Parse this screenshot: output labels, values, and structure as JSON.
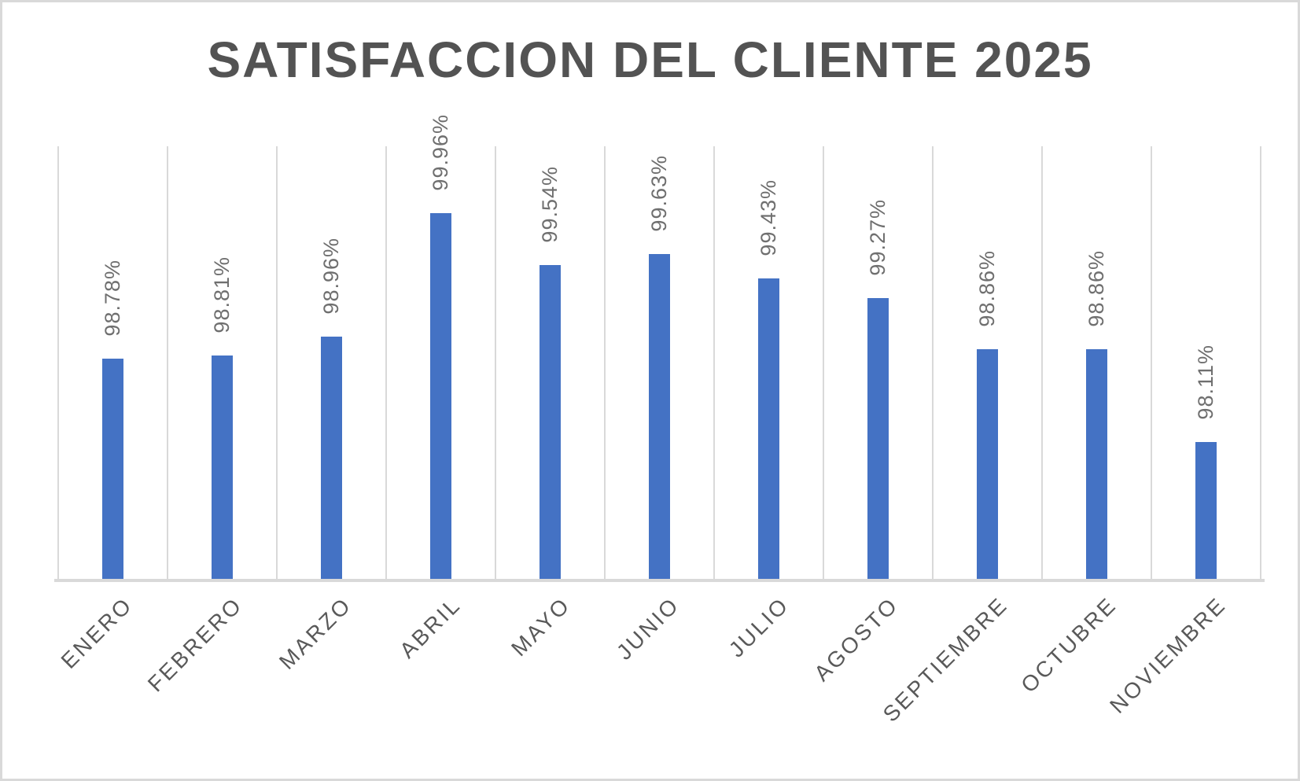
{
  "chart": {
    "title": "SATISFACCION DEL CLIENTE 2025"
  },
  "chart_data": {
    "type": "bar",
    "title": "SATISFACCION DEL CLIENTE 2025",
    "categories": [
      "ENERO",
      "FEBRERO",
      "MARZO",
      "ABRIL",
      "MAYO",
      "JUNIO",
      "JULIO",
      "AGOSTO",
      "SEPTIEMBRE",
      "OCTUBRE",
      "NOVIEMBRE"
    ],
    "values": [
      98.78,
      98.81,
      98.96,
      99.96,
      99.54,
      99.63,
      99.43,
      99.27,
      98.86,
      98.86,
      98.11
    ],
    "data_labels": [
      "98.78%",
      "98.81%",
      "98.96%",
      "99.96%",
      "99.54%",
      "99.63%",
      "99.43%",
      "99.27%",
      "98.86%",
      "98.86%",
      "98.11%"
    ],
    "xlabel": "",
    "ylabel": "",
    "ylim": [
      97.0,
      100.5
    ],
    "y_axis_labels_visible": false,
    "grid": "vertical category boundaries only",
    "legend": "none",
    "colors": {
      "bar": "#4472C4",
      "gridline": "#D9D9D9",
      "axis_line": "#D9D9D9",
      "title_text": "#535353",
      "data_label_text": "#6F6F6F",
      "category_label_text": "#595959",
      "background": "#FFFFFF",
      "outer_border": "#D9D9D9"
    }
  }
}
